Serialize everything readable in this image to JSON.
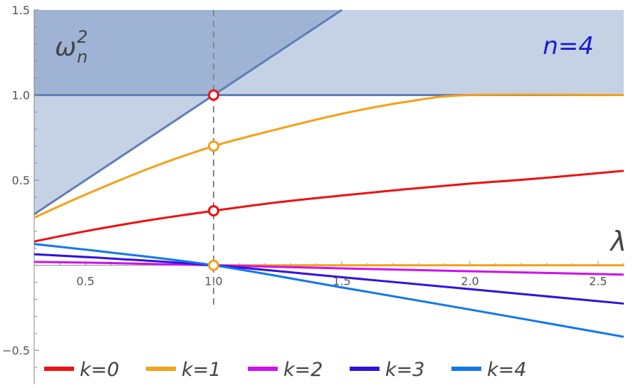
{
  "chart_data": {
    "type": "line",
    "xlim": [
      0.3,
      2.6
    ],
    "ylim": [
      -0.7,
      1.5
    ],
    "x_ticks": [
      0.5,
      1.0,
      1.5,
      2.0,
      2.5
    ],
    "x_tick_labels": [
      "0.5",
      "1.0",
      "1.5",
      "2.0",
      "2.5"
    ],
    "y_ticks": [
      -0.5,
      0.5,
      1.0,
      1.5
    ],
    "y_tick_labels": [
      "-0.5",
      "0.5",
      "1.0",
      "1.5"
    ],
    "xlabel": "λ",
    "ylabel_base": "ω",
    "ylabel_sub": "n",
    "ylabel_sup": "2",
    "annotation": "n=4",
    "vertical_line_x": 1.0,
    "shaded_regions": [
      {
        "name": "upper-band",
        "y_from": 1.0,
        "y_to": 1.5
      },
      {
        "name": "above-diagonal",
        "line": [
          [
            0.3,
            0.3
          ],
          [
            1.5,
            1.5
          ]
        ],
        "y_to": 1.5
      }
    ],
    "reference_lines": [
      {
        "name": "y=1",
        "points": [
          [
            0.3,
            1.0
          ],
          [
            2.6,
            1.0
          ]
        ]
      },
      {
        "name": "y=x",
        "points": [
          [
            0.3,
            0.3
          ],
          [
            1.5,
            1.5
          ]
        ]
      }
    ],
    "series": [
      {
        "name": "k=0",
        "color": "#ee1111",
        "x": [
          0.3,
          0.5,
          0.75,
          1.0,
          1.25,
          1.5,
          1.75,
          2.0,
          2.25,
          2.6
        ],
        "y": [
          0.14,
          0.2,
          0.265,
          0.32,
          0.37,
          0.41,
          0.447,
          0.48,
          0.508,
          0.555
        ]
      },
      {
        "name": "k=1",
        "color": "#f5a01a",
        "x": [
          0.3,
          0.5,
          0.75,
          1.0,
          1.25,
          1.5,
          1.75,
          2.0,
          2.6
        ],
        "y": [
          0.28,
          0.415,
          0.57,
          0.7,
          0.8,
          0.89,
          0.96,
          1.0,
          1.0
        ]
      },
      {
        "name": "k=2",
        "color": "#cc11ee",
        "x": [
          0.3,
          0.6,
          1.0,
          1.5,
          2.0,
          2.6
        ],
        "y": [
          0.02,
          0.013,
          0.0,
          -0.018,
          -0.035,
          -0.055
        ]
      },
      {
        "name": "k=3",
        "color": "#3311dd",
        "x": [
          0.3,
          0.6,
          1.0,
          1.5,
          2.0,
          2.6
        ],
        "y": [
          0.065,
          0.04,
          0.0,
          -0.07,
          -0.14,
          -0.225
        ]
      },
      {
        "name": "k=4",
        "color": "#1177ee",
        "x": [
          0.3,
          0.6,
          1.0,
          1.5,
          2.0,
          2.6
        ],
        "y": [
          0.125,
          0.075,
          0.0,
          -0.13,
          -0.26,
          -0.42
        ]
      }
    ],
    "k1_zero_line": {
      "color": "#f5a01a",
      "x": [
        1.0,
        2.6
      ],
      "y": [
        0.0,
        0.0
      ]
    },
    "markers": [
      {
        "series": "k=0",
        "x": 1.0,
        "y": 1.0,
        "color": "#ee1111"
      },
      {
        "series": "k=1",
        "x": 1.0,
        "y": 0.7,
        "color": "#f5a01a"
      },
      {
        "series": "k=0",
        "x": 1.0,
        "y": 0.32,
        "color": "#ee1111"
      },
      {
        "series": "k=1",
        "x": 1.0,
        "y": 0.0,
        "color": "#f5a01a"
      }
    ],
    "legend": {
      "placement": "bottom",
      "entries": [
        {
          "label": "k=0",
          "color": "#ee1111"
        },
        {
          "label": "k=1",
          "color": "#f5a01a"
        },
        {
          "label": "k=2",
          "color": "#cc11ee"
        },
        {
          "label": "k=3",
          "color": "#3311dd"
        },
        {
          "label": "k=4",
          "color": "#1177ee"
        }
      ]
    },
    "colors": {
      "shade_light": "#c5d2e6",
      "shade_dark": "#9fb4d5",
      "reference_line": "#5f7fb5",
      "annotation": "#1a1acc",
      "axis": "#888888",
      "dashed": "#888888"
    }
  }
}
